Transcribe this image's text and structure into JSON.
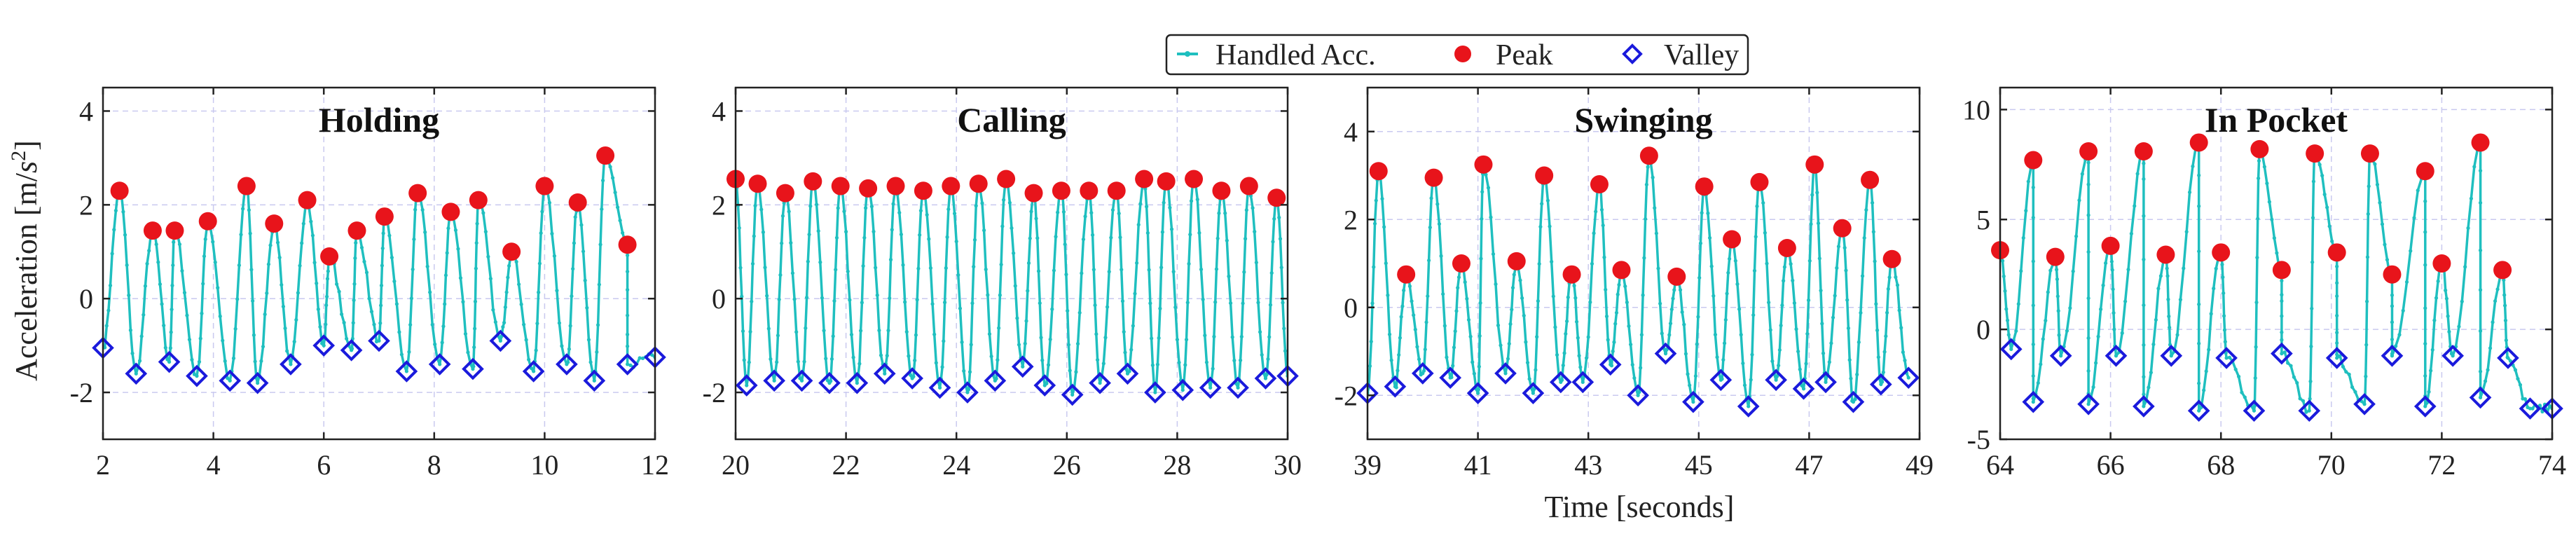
{
  "figure": {
    "ylabel_text": "Acceleration [m/",
    "ylabel_unit": "s",
    "ylabel_exp": "2",
    "ylabel_end": "]",
    "xlabel": "Time [seconds]",
    "legend": {
      "placement": "top-center",
      "entries": [
        {
          "label": "Handled Acc.",
          "marker": "line-dot",
          "color": "#1fbfbf"
        },
        {
          "label": "Peak",
          "marker": "circle",
          "color": "#e8141b"
        },
        {
          "label": "Valley",
          "marker": "diamond",
          "color": "#1a1adc"
        }
      ]
    },
    "colors": {
      "signal": "#1fbfbf",
      "peak": "#e8141b",
      "valley": "#1a1adc",
      "grid": "#c9c9ef"
    }
  },
  "chart_data": [
    {
      "type": "line",
      "title": "Holding",
      "xlabel": "",
      "ylabel": "Acceleration [m/s^2]",
      "xlim": [
        2,
        12
      ],
      "ylim": [
        -3,
        4.5
      ],
      "xticks": [
        2,
        4,
        6,
        8,
        10,
        12
      ],
      "yticks": [
        -2,
        0,
        2,
        4
      ],
      "grid": true,
      "peaks": {
        "x": [
          2.3,
          2.9,
          3.3,
          3.9,
          4.6,
          5.1,
          5.7,
          6.1,
          6.6,
          7.1,
          7.7,
          8.3,
          8.8,
          9.4,
          10.0,
          10.6,
          11.1,
          11.5
        ],
        "y": [
          2.3,
          1.45,
          1.45,
          1.65,
          2.4,
          1.6,
          2.1,
          0.9,
          1.45,
          1.75,
          2.25,
          1.85,
          2.1,
          1.0,
          2.4,
          2.05,
          3.05,
          1.15
        ]
      },
      "valleys": {
        "x": [
          2.0,
          2.6,
          3.2,
          3.7,
          4.3,
          4.8,
          5.4,
          6.0,
          6.5,
          7.0,
          7.5,
          8.1,
          8.7,
          9.2,
          9.8,
          10.4,
          10.9,
          11.5,
          12.0
        ],
        "y": [
          -1.05,
          -1.6,
          -1.35,
          -1.65,
          -1.75,
          -1.8,
          -1.4,
          -1.0,
          -1.1,
          -0.9,
          -1.55,
          -1.4,
          -1.5,
          -0.9,
          -1.55,
          -1.4,
          -1.75,
          -1.4,
          -1.25
        ]
      }
    },
    {
      "type": "line",
      "title": "Calling",
      "xlabel": "",
      "ylabel": "",
      "xlim": [
        20,
        30
      ],
      "ylim": [
        -3,
        4.5
      ],
      "xticks": [
        20,
        22,
        24,
        26,
        28,
        30
      ],
      "yticks": [
        -2,
        0,
        2,
        4
      ],
      "grid": true,
      "peaks": {
        "x": [
          20.0,
          20.4,
          20.9,
          21.4,
          21.9,
          22.4,
          22.9,
          23.4,
          23.9,
          24.4,
          24.9,
          25.4,
          25.9,
          26.4,
          26.9,
          27.4,
          27.8,
          28.3,
          28.8,
          29.3,
          29.8
        ],
        "y": [
          2.55,
          2.45,
          2.25,
          2.5,
          2.4,
          2.35,
          2.4,
          2.3,
          2.4,
          2.45,
          2.55,
          2.25,
          2.3,
          2.3,
          2.3,
          2.55,
          2.5,
          2.55,
          2.3,
          2.4,
          2.15
        ]
      },
      "valleys": {
        "x": [
          20.2,
          20.7,
          21.2,
          21.7,
          22.2,
          22.7,
          23.2,
          23.7,
          24.2,
          24.7,
          25.2,
          25.6,
          26.1,
          26.6,
          27.1,
          27.6,
          28.1,
          28.6,
          29.1,
          29.6,
          30.0
        ],
        "y": [
          -1.85,
          -1.75,
          -1.75,
          -1.8,
          -1.8,
          -1.6,
          -1.7,
          -1.9,
          -2.0,
          -1.75,
          -1.45,
          -1.85,
          -2.05,
          -1.8,
          -1.6,
          -2.0,
          -1.95,
          -1.9,
          -1.9,
          -1.7,
          -1.65
        ]
      }
    },
    {
      "type": "line",
      "title": "Swinging",
      "xlabel": "",
      "ylabel": "",
      "xlim": [
        39,
        49
      ],
      "ylim": [
        -3,
        5
      ],
      "xticks": [
        39,
        41,
        43,
        45,
        47,
        49
      ],
      "yticks": [
        -2,
        0,
        2,
        4
      ],
      "grid": true,
      "peaks": {
        "x": [
          39.2,
          39.7,
          40.2,
          40.7,
          41.1,
          41.7,
          42.2,
          42.7,
          43.2,
          43.6,
          44.1,
          44.6,
          45.1,
          45.6,
          46.1,
          46.6,
          47.1,
          47.6,
          48.1,
          48.5
        ],
        "y": [
          3.1,
          0.75,
          2.95,
          1.0,
          3.25,
          1.05,
          3.0,
          0.75,
          2.8,
          0.85,
          3.45,
          0.7,
          2.75,
          1.55,
          2.85,
          1.35,
          3.25,
          1.8,
          2.9,
          1.1
        ]
      },
      "valleys": {
        "x": [
          39.0,
          39.5,
          40.0,
          40.5,
          41.0,
          41.5,
          42.0,
          42.5,
          42.9,
          43.4,
          43.9,
          44.4,
          44.9,
          45.4,
          45.9,
          46.4,
          46.9,
          47.3,
          47.8,
          48.3,
          48.8
        ],
        "y": [
          -1.95,
          -1.8,
          -1.5,
          -1.6,
          -1.95,
          -1.5,
          -1.95,
          -1.7,
          -1.7,
          -1.3,
          -2.0,
          -1.05,
          -2.15,
          -1.65,
          -2.25,
          -1.65,
          -1.85,
          -1.7,
          -2.15,
          -1.75,
          -1.6
        ]
      }
    },
    {
      "type": "line",
      "title": "In Pocket",
      "xlabel": "",
      "ylabel": "",
      "xlim": [
        64,
        74
      ],
      "ylim": [
        -5,
        11
      ],
      "xticks": [
        64,
        66,
        68,
        70,
        72,
        74
      ],
      "yticks": [
        -5,
        0,
        5,
        10
      ],
      "grid": true,
      "peaks": {
        "x": [
          64.0,
          64.6,
          65.0,
          65.6,
          66.0,
          66.6,
          67.0,
          67.6,
          68.0,
          68.7,
          69.1,
          69.7,
          70.1,
          70.7,
          71.1,
          71.7,
          72.0,
          72.7,
          73.1
        ],
        "y": [
          3.6,
          7.7,
          3.3,
          8.1,
          3.8,
          8.1,
          3.4,
          8.5,
          3.5,
          8.2,
          2.7,
          8.0,
          3.5,
          8.0,
          2.5,
          7.2,
          3.0,
          8.5,
          2.7
        ]
      },
      "valleys": {
        "x": [
          64.2,
          64.6,
          65.1,
          65.6,
          66.1,
          66.6,
          67.1,
          67.6,
          68.1,
          68.6,
          69.1,
          69.6,
          70.1,
          70.6,
          71.1,
          71.7,
          72.2,
          72.7,
          73.2,
          73.6,
          74.0
        ],
        "y": [
          -0.9,
          -3.3,
          -1.2,
          -3.4,
          -1.2,
          -3.5,
          -1.2,
          -3.7,
          -1.3,
          -3.7,
          -1.1,
          -3.7,
          -1.3,
          -3.4,
          -1.2,
          -3.5,
          -1.2,
          -3.1,
          -1.3,
          -3.6,
          -3.6
        ]
      }
    }
  ]
}
